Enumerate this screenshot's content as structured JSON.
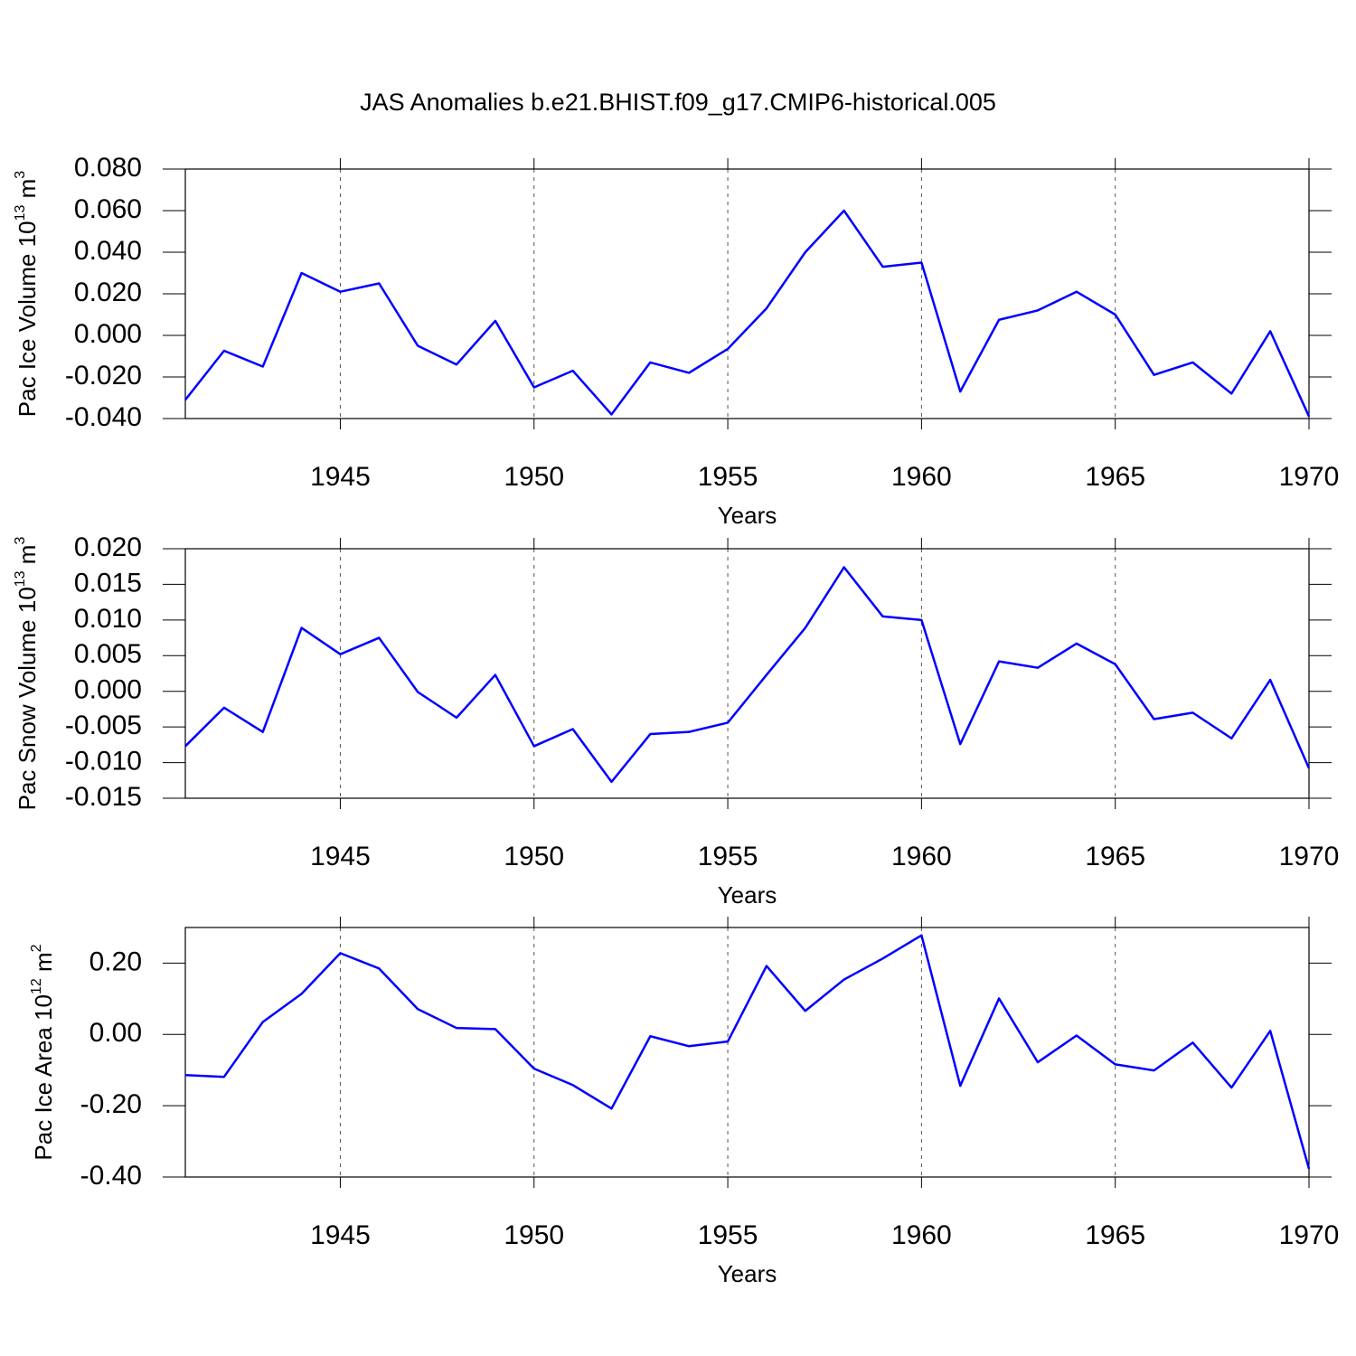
{
  "chart_data": [
    {
      "type": "line",
      "title": "JAS Anomalies b.e21.BHIST.f09_g17.CMIP6-historical.005",
      "xlabel": "Years",
      "ylabel": [
        "Pac Ice Volume 10",
        "13",
        " m",
        "3"
      ],
      "x": [
        1941,
        1942,
        1943,
        1944,
        1945,
        1946,
        1947,
        1948,
        1949,
        1950,
        1951,
        1952,
        1953,
        1954,
        1955,
        1956,
        1957,
        1958,
        1959,
        1960,
        1961,
        1962,
        1963,
        1964,
        1965,
        1966,
        1967,
        1968,
        1969,
        1970
      ],
      "series": [
        {
          "color": "#0000ff",
          "values": [
            -0.031,
            -0.0074,
            -0.015,
            0.03,
            0.021,
            0.025,
            -0.005,
            -0.014,
            0.007,
            -0.025,
            -0.017,
            -0.038,
            -0.013,
            -0.018,
            -0.0065,
            0.013,
            0.04,
            0.06,
            0.033,
            0.035,
            -0.027,
            0.0075,
            0.012,
            0.021,
            0.01,
            -0.019,
            -0.013,
            -0.028,
            0.002,
            -0.039
          ]
        }
      ],
      "xlim": [
        1941,
        1970
      ],
      "xticks": [
        1945,
        1950,
        1955,
        1960,
        1965,
        1970
      ],
      "ylim": [
        -0.04,
        0.08
      ],
      "yticks": [
        {
          "value": -0.04,
          "label": "-0.040"
        },
        {
          "value": -0.02,
          "label": "-0.020"
        },
        {
          "value": 0,
          "label": "0.000"
        },
        {
          "value": 0.02,
          "label": "0.020"
        },
        {
          "value": 0.04,
          "label": "0.040"
        },
        {
          "value": 0.06,
          "label": "0.060"
        },
        {
          "value": 0.08,
          "label": "0.080"
        }
      ],
      "xgrid": true
    },
    {
      "type": "line",
      "xlabel": "Years",
      "ylabel": [
        "Pac Snow Volume 10",
        "13",
        " m",
        "3"
      ],
      "x": [
        1941,
        1942,
        1943,
        1944,
        1945,
        1946,
        1947,
        1948,
        1949,
        1950,
        1951,
        1952,
        1953,
        1954,
        1955,
        1956,
        1957,
        1958,
        1959,
        1960,
        1961,
        1962,
        1963,
        1964,
        1965,
        1966,
        1967,
        1968,
        1969,
        1970
      ],
      "series": [
        {
          "color": "#0000ff",
          "values": [
            -0.0077,
            -0.0023,
            -0.0057,
            0.0089,
            0.0052,
            0.0075,
            -0.0001,
            -0.0037,
            0.0023,
            -0.0077,
            -0.0053,
            -0.0127,
            -0.006,
            -0.0057,
            -0.0044,
            0.0023,
            0.0089,
            0.0174,
            0.0105,
            0.01,
            -0.0074,
            0.0042,
            0.0033,
            0.0067,
            0.0038,
            -0.0039,
            -0.003,
            -0.0066,
            0.0016,
            -0.0108
          ]
        }
      ],
      "xlim": [
        1941,
        1970
      ],
      "xticks": [
        1945,
        1950,
        1955,
        1960,
        1965,
        1970
      ],
      "ylim": [
        -0.015,
        0.02
      ],
      "yticks": [
        {
          "value": -0.015,
          "label": "-0.015"
        },
        {
          "value": -0.01,
          "label": "-0.010"
        },
        {
          "value": -0.005,
          "label": "-0.005"
        },
        {
          "value": 0,
          "label": "0.000"
        },
        {
          "value": 0.005,
          "label": "0.005"
        },
        {
          "value": 0.01,
          "label": "0.010"
        },
        {
          "value": 0.015,
          "label": "0.015"
        },
        {
          "value": 0.02,
          "label": "0.020"
        }
      ],
      "xgrid": true
    },
    {
      "type": "line",
      "xlabel": "Years",
      "ylabel": [
        "Pac Ice Area 10",
        "12",
        " m",
        "2"
      ],
      "x": [
        1941,
        1942,
        1943,
        1944,
        1945,
        1946,
        1947,
        1948,
        1949,
        1950,
        1951,
        1952,
        1953,
        1954,
        1955,
        1956,
        1957,
        1958,
        1959,
        1960,
        1961,
        1962,
        1963,
        1964,
        1965,
        1966,
        1967,
        1968,
        1969,
        1970
      ],
      "series": [
        {
          "color": "#0000ff",
          "values": [
            -0.114,
            -0.119,
            0.035,
            0.114,
            0.228,
            0.185,
            0.071,
            0.018,
            0.015,
            -0.096,
            -0.142,
            -0.208,
            -0.005,
            -0.033,
            -0.02,
            0.192,
            0.066,
            0.154,
            0.213,
            0.278,
            -0.144,
            0.101,
            -0.078,
            -0.003,
            -0.084,
            -0.101,
            -0.023,
            -0.149,
            0.01,
            -0.377
          ]
        }
      ],
      "xlim": [
        1941,
        1970
      ],
      "xticks": [
        1945,
        1950,
        1955,
        1960,
        1965,
        1970
      ],
      "ylim": [
        -0.4,
        0.3
      ],
      "yticks": [
        {
          "value": -0.4,
          "label": "-0.40"
        },
        {
          "value": -0.2,
          "label": "-0.20"
        },
        {
          "value": 0,
          "label": "0.00"
        },
        {
          "value": 0.2,
          "label": "0.20"
        }
      ],
      "xgrid": true
    }
  ]
}
